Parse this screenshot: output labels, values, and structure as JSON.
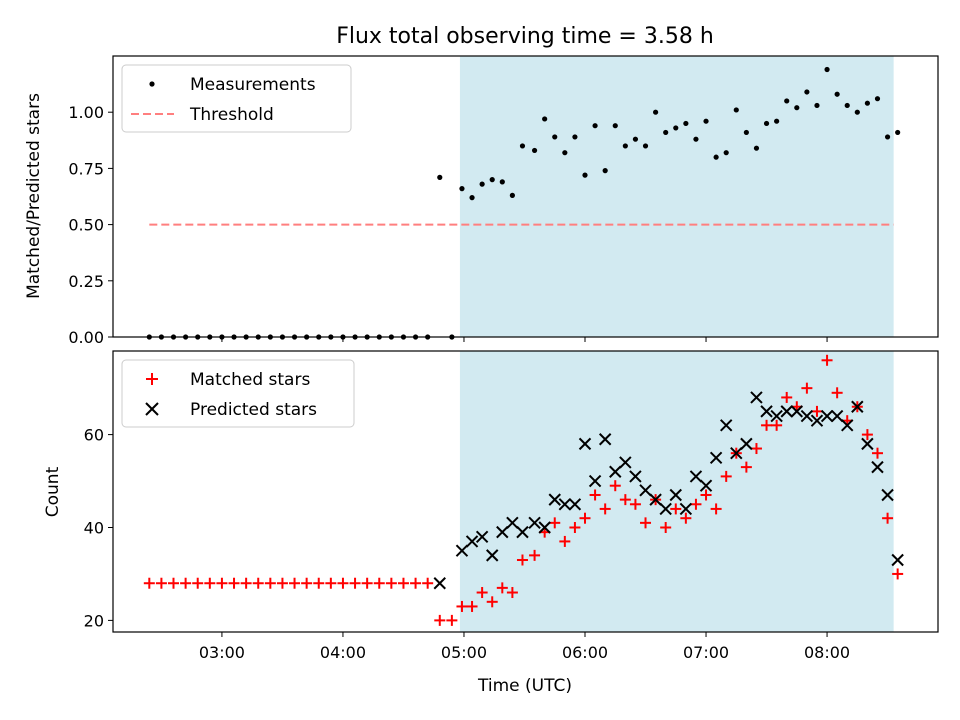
{
  "figure": {
    "title": "Flux total observing time = 3.58 h"
  },
  "chart_data": [
    {
      "type": "scatter",
      "panel": "top",
      "ylabel": "Matched/Predicted stars",
      "xlabel": "",
      "xlim": [
        "02:06",
        "08:55"
      ],
      "ylim": [
        0,
        1.25
      ],
      "y_ticks": [
        "0.00",
        "0.25",
        "0.50",
        "0.75",
        "1.00"
      ],
      "x_tick_labels_visible": false,
      "shaded_interval": {
        "start": "04:58",
        "end": "08:33",
        "color": "#add8e6"
      },
      "legend": {
        "position": "top-left",
        "entries": [
          "Measurements",
          "Threshold"
        ]
      },
      "series": [
        {
          "name": "Measurements",
          "marker": "dot",
          "color": "#000000",
          "points": [
            [
              "02:24",
              0
            ],
            [
              "02:30",
              0
            ],
            [
              "02:36",
              0
            ],
            [
              "02:42",
              0
            ],
            [
              "02:48",
              0
            ],
            [
              "02:54",
              0
            ],
            [
              "03:00",
              0
            ],
            [
              "03:06",
              0
            ],
            [
              "03:12",
              0
            ],
            [
              "03:18",
              0
            ],
            [
              "03:24",
              0
            ],
            [
              "03:30",
              0
            ],
            [
              "03:36",
              0
            ],
            [
              "03:42",
              0
            ],
            [
              "03:48",
              0
            ],
            [
              "03:54",
              0
            ],
            [
              "04:00",
              0
            ],
            [
              "04:06",
              0
            ],
            [
              "04:12",
              0
            ],
            [
              "04:18",
              0
            ],
            [
              "04:24",
              0
            ],
            [
              "04:30",
              0
            ],
            [
              "04:36",
              0
            ],
            [
              "04:42",
              0
            ],
            [
              "04:48",
              0.71
            ],
            [
              "04:54",
              0
            ],
            [
              "04:59",
              0.66
            ],
            [
              "05:04",
              0.62
            ],
            [
              "05:09",
              0.68
            ],
            [
              "05:14",
              0.7
            ],
            [
              "05:19",
              0.69
            ],
            [
              "05:24",
              0.63
            ],
            [
              "05:29",
              0.85
            ],
            [
              "05:35",
              0.83
            ],
            [
              "05:40",
              0.97
            ],
            [
              "05:45",
              0.89
            ],
            [
              "05:50",
              0.82
            ],
            [
              "05:55",
              0.89
            ],
            [
              "06:00",
              0.72
            ],
            [
              "06:05",
              0.94
            ],
            [
              "06:10",
              0.74
            ],
            [
              "06:15",
              0.94
            ],
            [
              "06:20",
              0.85
            ],
            [
              "06:25",
              0.88
            ],
            [
              "06:30",
              0.85
            ],
            [
              "06:35",
              1.0
            ],
            [
              "06:40",
              0.91
            ],
            [
              "06:45",
              0.93
            ],
            [
              "06:50",
              0.95
            ],
            [
              "06:55",
              0.88
            ],
            [
              "07:00",
              0.96
            ],
            [
              "07:05",
              0.8
            ],
            [
              "07:10",
              0.82
            ],
            [
              "07:15",
              1.01
            ],
            [
              "07:20",
              0.91
            ],
            [
              "07:25",
              0.84
            ],
            [
              "07:30",
              0.95
            ],
            [
              "07:35",
              0.96
            ],
            [
              "07:40",
              1.05
            ],
            [
              "07:45",
              1.02
            ],
            [
              "07:50",
              1.09
            ],
            [
              "07:55",
              1.03
            ],
            [
              "08:00",
              1.19
            ],
            [
              "08:05",
              1.08
            ],
            [
              "08:10",
              1.03
            ],
            [
              "08:15",
              1.0
            ],
            [
              "08:20",
              1.04
            ],
            [
              "08:25",
              1.06
            ],
            [
              "08:30",
              0.89
            ],
            [
              "08:35",
              0.91
            ]
          ]
        },
        {
          "name": "Threshold",
          "style": "dashed",
          "color": "#ff7f7f",
          "x_range": [
            "02:24",
            "08:33"
          ],
          "y": 0.5
        }
      ]
    },
    {
      "type": "scatter",
      "panel": "bottom",
      "ylabel": "Count",
      "xlabel": "Time (UTC)",
      "xlim": [
        "02:06",
        "08:55"
      ],
      "ylim": [
        17.5,
        78
      ],
      "y_ticks": [
        "20",
        "40",
        "60"
      ],
      "x_ticks": [
        "03:00",
        "04:00",
        "05:00",
        "06:00",
        "07:00",
        "08:00"
      ],
      "shaded_interval": {
        "start": "04:58",
        "end": "08:33",
        "color": "#add8e6"
      },
      "legend": {
        "position": "top-left",
        "entries": [
          "Matched stars",
          "Predicted stars"
        ]
      },
      "series": [
        {
          "name": "Matched stars",
          "marker": "plus",
          "color": "#ff0000",
          "points": [
            [
              "02:24",
              28
            ],
            [
              "02:30",
              28
            ],
            [
              "02:36",
              28
            ],
            [
              "02:42",
              28
            ],
            [
              "02:48",
              28
            ],
            [
              "02:54",
              28
            ],
            [
              "03:00",
              28
            ],
            [
              "03:06",
              28
            ],
            [
              "03:12",
              28
            ],
            [
              "03:18",
              28
            ],
            [
              "03:24",
              28
            ],
            [
              "03:30",
              28
            ],
            [
              "03:36",
              28
            ],
            [
              "03:42",
              28
            ],
            [
              "03:48",
              28
            ],
            [
              "03:54",
              28
            ],
            [
              "04:00",
              28
            ],
            [
              "04:06",
              28
            ],
            [
              "04:12",
              28
            ],
            [
              "04:18",
              28
            ],
            [
              "04:24",
              28
            ],
            [
              "04:30",
              28
            ],
            [
              "04:36",
              28
            ],
            [
              "04:42",
              28
            ],
            [
              "04:48",
              20
            ],
            [
              "04:54",
              20
            ],
            [
              "04:59",
              23
            ],
            [
              "05:04",
              23
            ],
            [
              "05:09",
              26
            ],
            [
              "05:14",
              24
            ],
            [
              "05:19",
              27
            ],
            [
              "05:24",
              26
            ],
            [
              "05:29",
              33
            ],
            [
              "05:35",
              34
            ],
            [
              "05:40",
              39
            ],
            [
              "05:45",
              41
            ],
            [
              "05:50",
              37
            ],
            [
              "05:55",
              40
            ],
            [
              "06:00",
              42
            ],
            [
              "06:05",
              47
            ],
            [
              "06:10",
              44
            ],
            [
              "06:15",
              49
            ],
            [
              "06:20",
              46
            ],
            [
              "06:25",
              45
            ],
            [
              "06:30",
              41
            ],
            [
              "06:35",
              46
            ],
            [
              "06:40",
              40
            ],
            [
              "06:45",
              44
            ],
            [
              "06:50",
              42
            ],
            [
              "06:55",
              45
            ],
            [
              "07:00",
              47
            ],
            [
              "07:05",
              44
            ],
            [
              "07:10",
              51
            ],
            [
              "07:15",
              56
            ],
            [
              "07:20",
              53
            ],
            [
              "07:25",
              57
            ],
            [
              "07:30",
              62
            ],
            [
              "07:35",
              62
            ],
            [
              "07:40",
              68
            ],
            [
              "07:45",
              66
            ],
            [
              "07:50",
              70
            ],
            [
              "07:55",
              65
            ],
            [
              "08:00",
              76
            ],
            [
              "08:05",
              69
            ],
            [
              "08:10",
              63
            ],
            [
              "08:15",
              66
            ],
            [
              "08:20",
              60
            ],
            [
              "08:25",
              56
            ],
            [
              "08:30",
              42
            ],
            [
              "08:35",
              30
            ]
          ]
        },
        {
          "name": "Predicted stars",
          "marker": "x",
          "color": "#000000",
          "points": [
            [
              "04:48",
              28
            ],
            [
              "04:59",
              35
            ],
            [
              "05:04",
              37
            ],
            [
              "05:09",
              38
            ],
            [
              "05:14",
              34
            ],
            [
              "05:19",
              39
            ],
            [
              "05:24",
              41
            ],
            [
              "05:29",
              39
            ],
            [
              "05:35",
              41
            ],
            [
              "05:40",
              40
            ],
            [
              "05:45",
              46
            ],
            [
              "05:50",
              45
            ],
            [
              "05:55",
              45
            ],
            [
              "06:00",
              58
            ],
            [
              "06:05",
              50
            ],
            [
              "06:10",
              59
            ],
            [
              "06:15",
              52
            ],
            [
              "06:20",
              54
            ],
            [
              "06:25",
              51
            ],
            [
              "06:30",
              48
            ],
            [
              "06:35",
              46
            ],
            [
              "06:40",
              44
            ],
            [
              "06:45",
              47
            ],
            [
              "06:50",
              44
            ],
            [
              "06:55",
              51
            ],
            [
              "07:00",
              49
            ],
            [
              "07:05",
              55
            ],
            [
              "07:10",
              62
            ],
            [
              "07:15",
              56
            ],
            [
              "07:20",
              58
            ],
            [
              "07:25",
              68
            ],
            [
              "07:30",
              65
            ],
            [
              "07:35",
              64
            ],
            [
              "07:40",
              65
            ],
            [
              "07:45",
              65
            ],
            [
              "07:50",
              64
            ],
            [
              "07:55",
              63
            ],
            [
              "08:00",
              64
            ],
            [
              "08:05",
              64
            ],
            [
              "08:10",
              62
            ],
            [
              "08:15",
              66
            ],
            [
              "08:20",
              58
            ],
            [
              "08:25",
              53
            ],
            [
              "08:30",
              47
            ],
            [
              "08:35",
              33
            ]
          ]
        }
      ]
    }
  ]
}
